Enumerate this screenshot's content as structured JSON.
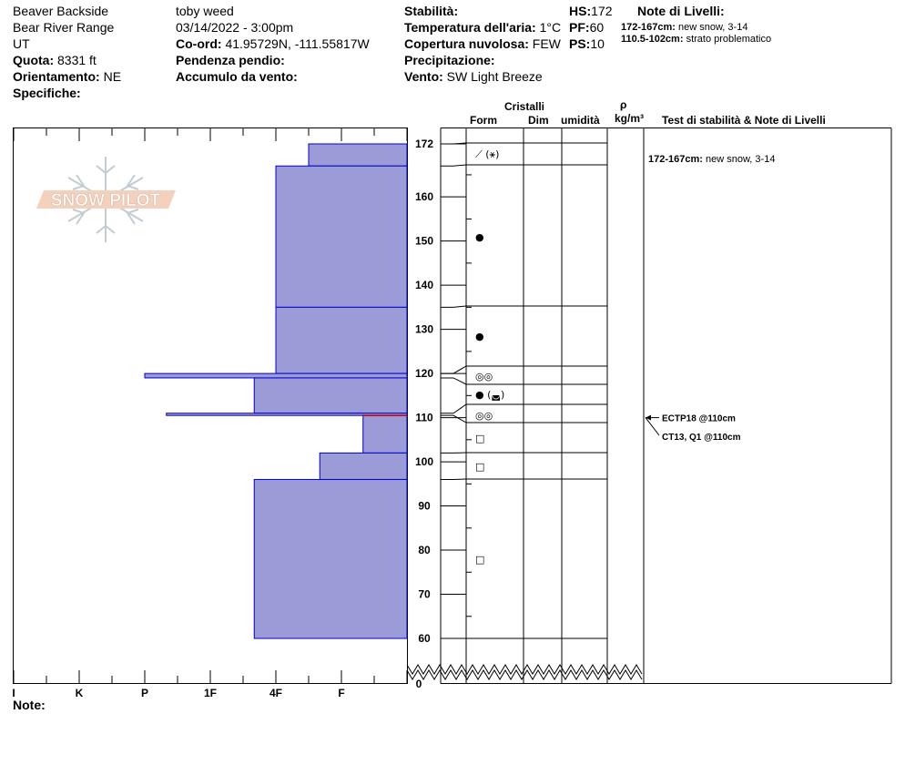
{
  "header": {
    "location": "Beaver Backside",
    "range": "Bear River Range",
    "state": "UT",
    "elevation_label": "Quota:",
    "elevation_value": "8331 ft",
    "aspect_label": "Orientamento:",
    "aspect_value": "NE",
    "specifics_label": "Specifiche:",
    "observer": "toby weed",
    "datetime": "03/14/2022 - 3:00pm",
    "coord_label": "Co-ord:",
    "coord_value": "41.95729N, -111.55817W",
    "slope_label": "Pendenza pendio:",
    "wind_loading_label": "Accumulo da vento:",
    "stability_label": "Stabilità:",
    "air_temp_label": "Temperatura dell'aria:",
    "air_temp_value": "1°C",
    "cloud_label": "Copertura nuvolosa:",
    "cloud_value": "FEW",
    "precip_label": "Precipitazione:",
    "wind_label": "Vento:",
    "wind_value": "SW Light Breeze",
    "hs_label": "HS:",
    "hs_value": "172",
    "pf_label": "PF:",
    "pf_value": "60",
    "ps_label": "PS:",
    "ps_value": "10",
    "layer_notes_title": "Note di Livelli:",
    "layer_notes": [
      {
        "range": "172-167cm:",
        "text": "new snow, 3-14"
      },
      {
        "range": "110.5-102cm:",
        "text": "strato problematico"
      }
    ]
  },
  "columns": {
    "crystals": "Cristalli",
    "form": "Form",
    "dim": "Dim",
    "moisture": "umidità",
    "density_symbol": "ρ",
    "density_unit": "kg/m³",
    "stability_notes": "Test di stabilità & Note di Livelli"
  },
  "footer": {
    "note_label": "Note:"
  },
  "logo": {
    "text": "SNOW PILOT"
  },
  "colors": {
    "layer_fill": "#9b9bd7",
    "layer_stroke": "#0000cc",
    "problem_line": "#cc0000"
  },
  "chart_data": {
    "type": "bar",
    "orientation": "horizontal",
    "y_axis": {
      "min": 0,
      "display_min": 60,
      "max": 172,
      "ticks": [
        60,
        70,
        80,
        90,
        100,
        110,
        120,
        130,
        140,
        150,
        160,
        172
      ],
      "tick_labels": [
        "60",
        "70",
        "80",
        "90",
        "100",
        "110",
        "120",
        "130",
        "140",
        "150",
        "160",
        "172"
      ],
      "break_label": "0"
    },
    "x_axis": {
      "categories": [
        "I",
        "K",
        "P",
        "1F",
        "4F",
        "F"
      ],
      "scale": [
        {
          "label": "F",
          "value": 1
        },
        {
          "label": "4F",
          "value": 2
        },
        {
          "label": "1F",
          "value": 3
        },
        {
          "label": "P",
          "value": 4
        },
        {
          "label": "K",
          "value": 5
        },
        {
          "label": "I",
          "value": 6
        }
      ]
    },
    "layers": [
      {
        "top": 172,
        "bottom": 167,
        "hardness": 1.5
      },
      {
        "top": 167,
        "bottom": 135,
        "hardness": 2.0
      },
      {
        "top": 135,
        "bottom": 120,
        "hardness": 2.0
      },
      {
        "top": 120,
        "bottom": 119,
        "hardness": 4.0
      },
      {
        "top": 119,
        "bottom": 111,
        "hardness": 2.33
      },
      {
        "top": 111,
        "bottom": 110.5,
        "hardness": 3.67
      },
      {
        "top": 110.5,
        "bottom": 102,
        "hardness": 0.67
      },
      {
        "top": 102,
        "bottom": 96,
        "hardness": 1.33
      },
      {
        "top": 96,
        "bottom": 60,
        "hardness": 2.33
      }
    ],
    "problem_layer_height": 110.5,
    "layer_boundaries": [
      172,
      167,
      135,
      120,
      119,
      111,
      110.5,
      102,
      96,
      60
    ],
    "crystal_symbols": [
      {
        "height": 169.5,
        "symbol": "⟋ (⚹)"
      },
      {
        "height": 151,
        "symbol": "●"
      },
      {
        "height": 128,
        "symbol": "●"
      },
      {
        "height": 119.5,
        "symbol": "◎◎"
      },
      {
        "height": 115,
        "symbol": "● (◛)"
      },
      {
        "height": 110.75,
        "symbol": "◎◎"
      },
      {
        "height": 105.5,
        "symbol": "□"
      },
      {
        "height": 99,
        "symbol": "□"
      },
      {
        "height": 78,
        "symbol": "□"
      }
    ],
    "stability_tests": [
      {
        "height": 110,
        "label": "ECTP18 @110cm"
      },
      {
        "height": 110,
        "label": "CT13, Q1 @110cm"
      }
    ],
    "layer_comments": [
      {
        "height": 169.5,
        "label": "172-167cm:",
        "text": "new snow, 3-14"
      }
    ]
  }
}
